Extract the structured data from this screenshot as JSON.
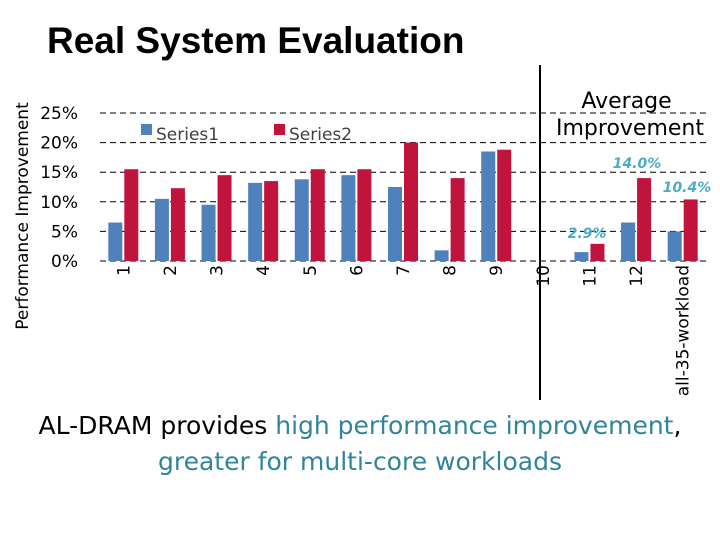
{
  "slide": {
    "title": "Real System Evaluation",
    "caption": {
      "part1": "AL-DRAM provides ",
      "highlight1": "high performance improvement",
      "part2": ", ",
      "highlight2": "greater for multi-core workloads"
    }
  },
  "colors": {
    "series1": "#4f81bd",
    "series2": "#c0143c",
    "annotation": "#4bacc6",
    "highlight": "#31849b"
  },
  "chart_data": {
    "type": "bar",
    "title": "",
    "xlabel": "",
    "ylabel": "Performance Improvement",
    "ylim": [
      0,
      25
    ],
    "yticks": [
      "0%",
      "5%",
      "10%",
      "15%",
      "20%",
      "25%"
    ],
    "ytick_values": [
      0,
      5,
      10,
      15,
      20,
      25
    ],
    "grid": "dashed",
    "legend_position": "top-left",
    "categories": [
      "1",
      "2",
      "3",
      "4",
      "5",
      "6",
      "7",
      "8",
      "9",
      "10",
      "11",
      "12",
      "all-35-workload"
    ],
    "series": [
      {
        "name": "Series1",
        "values": [
          6.5,
          10.5,
          9.5,
          13.2,
          13.8,
          14.5,
          12.5,
          1.8,
          18.5,
          0,
          1.5,
          6.5,
          5.0
        ]
      },
      {
        "name": "Series2",
        "values": [
          15.5,
          12.3,
          14.5,
          13.5,
          15.5,
          15.5,
          20.0,
          14.0,
          18.8,
          0,
          2.9,
          14.0,
          10.4
        ]
      }
    ],
    "annotations": {
      "group_label": "Average Improvement",
      "values": [
        "2.9%",
        "14.0%",
        "10.4%"
      ]
    }
  }
}
